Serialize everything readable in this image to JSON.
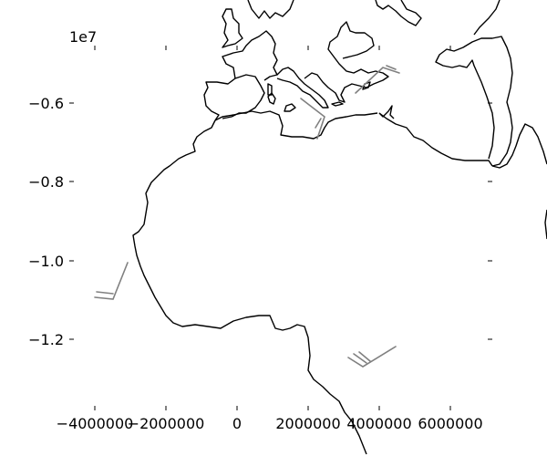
{
  "figure": {
    "y_offset_label": "1e7",
    "background_color": "#ffffff",
    "coastline_color": "#000000",
    "barb_color": "#808080"
  },
  "axes": {
    "xlim": [
      -4000000,
      6800000
    ],
    "ylim": [
      -13600000,
      -4800000
    ],
    "x_ticks": [
      {
        "value": -4000000,
        "label": "−4000000"
      },
      {
        "value": -2000000,
        "label": "−2000000"
      },
      {
        "value": 0,
        "label": "0"
      },
      {
        "value": 2000000,
        "label": "2000000"
      },
      {
        "value": 4000000,
        "label": "4000000"
      },
      {
        "value": 6000000,
        "label": "6000000"
      }
    ],
    "y_ticks": [
      {
        "value": -6000000,
        "label": "−0.6"
      },
      {
        "value": -8000000,
        "label": "−0.8"
      },
      {
        "value": -10000000,
        "label": "−1.0"
      },
      {
        "value": -12000000,
        "label": "−1.2"
      }
    ]
  },
  "map_content": {
    "projection": "polar stereographic (south-polar view)",
    "features": [
      "coastlines",
      "wind barbs"
    ],
    "coastline_regions": [
      "Europe",
      "Mediterranean Sea",
      "Africa",
      "Arabian Peninsula"
    ],
    "wind_barbs": [
      {
        "id": "west-africa-barb"
      },
      {
        "id": "mid-mediterranean-barb"
      },
      {
        "id": "east-mediterranean-barb"
      },
      {
        "id": "central-africa-barb"
      }
    ]
  }
}
